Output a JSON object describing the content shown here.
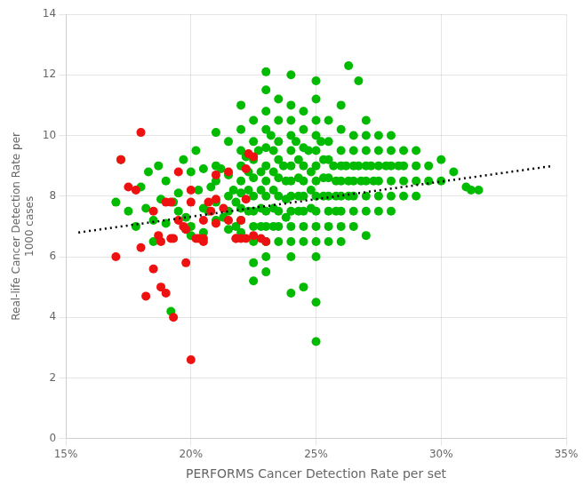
{
  "chart_data": {
    "type": "scatter",
    "xlabel": "PERFORMS Cancer Detection Rate per set",
    "ylabel": "Real-life Cancer Detection Rate per\n1000 cases",
    "xlim": [
      0.15,
      0.35
    ],
    "ylim": [
      0,
      14
    ],
    "xticks": [
      {
        "value": 0.15,
        "label": "15%"
      },
      {
        "value": 0.2,
        "label": "20%"
      },
      {
        "value": 0.25,
        "label": "25%"
      },
      {
        "value": 0.3,
        "label": "30%"
      },
      {
        "value": 0.35,
        "label": "35%"
      }
    ],
    "yticks": [
      0,
      2,
      4,
      6,
      8,
      10,
      12,
      14
    ],
    "grid": true,
    "series": [
      {
        "type": "scatter",
        "marker": "circle",
        "color": "#00BB00",
        "values": [
          [
            0.17,
            7.8
          ],
          [
            0.172,
            9.2
          ],
          [
            0.175,
            7.5
          ],
          [
            0.178,
            7.0
          ],
          [
            0.18,
            8.3
          ],
          [
            0.182,
            7.6
          ],
          [
            0.183,
            8.8
          ],
          [
            0.185,
            7.2
          ],
          [
            0.185,
            6.5
          ],
          [
            0.187,
            9.0
          ],
          [
            0.188,
            7.9
          ],
          [
            0.19,
            8.5
          ],
          [
            0.19,
            7.1
          ],
          [
            0.192,
            4.2
          ],
          [
            0.193,
            7.8
          ],
          [
            0.195,
            8.1
          ],
          [
            0.195,
            7.5
          ],
          [
            0.197,
            9.2
          ],
          [
            0.198,
            6.9
          ],
          [
            0.198,
            7.3
          ],
          [
            0.2,
            8.8
          ],
          [
            0.2,
            7.0
          ],
          [
            0.2,
            6.7
          ],
          [
            0.202,
            9.5
          ],
          [
            0.203,
            8.2
          ],
          [
            0.205,
            7.6
          ],
          [
            0.205,
            8.9
          ],
          [
            0.205,
            6.8
          ],
          [
            0.207,
            7.5
          ],
          [
            0.208,
            8.3
          ],
          [
            0.21,
            10.1
          ],
          [
            0.21,
            9.0
          ],
          [
            0.21,
            8.5
          ],
          [
            0.21,
            7.8
          ],
          [
            0.21,
            7.2
          ],
          [
            0.212,
            8.9
          ],
          [
            0.213,
            7.3
          ],
          [
            0.215,
            9.8
          ],
          [
            0.215,
            8.7
          ],
          [
            0.215,
            8.0
          ],
          [
            0.215,
            7.5
          ],
          [
            0.215,
            6.9
          ],
          [
            0.217,
            8.2
          ],
          [
            0.218,
            7.8
          ],
          [
            0.218,
            7.0
          ],
          [
            0.22,
            11.0
          ],
          [
            0.22,
            10.2
          ],
          [
            0.22,
            9.5
          ],
          [
            0.22,
            9.0
          ],
          [
            0.22,
            8.5
          ],
          [
            0.22,
            8.1
          ],
          [
            0.22,
            7.6
          ],
          [
            0.22,
            7.2
          ],
          [
            0.22,
            6.8
          ],
          [
            0.222,
            9.3
          ],
          [
            0.223,
            8.8
          ],
          [
            0.223,
            8.2
          ],
          [
            0.223,
            7.5
          ],
          [
            0.225,
            10.5
          ],
          [
            0.225,
            9.8
          ],
          [
            0.225,
            9.2
          ],
          [
            0.225,
            8.6
          ],
          [
            0.225,
            8.0
          ],
          [
            0.225,
            7.5
          ],
          [
            0.225,
            7.0
          ],
          [
            0.225,
            6.5
          ],
          [
            0.225,
            5.8
          ],
          [
            0.225,
            5.2
          ],
          [
            0.227,
            9.5
          ],
          [
            0.228,
            8.8
          ],
          [
            0.228,
            8.2
          ],
          [
            0.228,
            7.6
          ],
          [
            0.228,
            7.0
          ],
          [
            0.23,
            12.1
          ],
          [
            0.23,
            11.5
          ],
          [
            0.23,
            10.8
          ],
          [
            0.23,
            10.2
          ],
          [
            0.23,
            9.6
          ],
          [
            0.23,
            9.0
          ],
          [
            0.23,
            8.5
          ],
          [
            0.23,
            8.0
          ],
          [
            0.23,
            7.5
          ],
          [
            0.23,
            7.0
          ],
          [
            0.23,
            6.5
          ],
          [
            0.23,
            6.0
          ],
          [
            0.23,
            5.5
          ],
          [
            0.232,
            10.0
          ],
          [
            0.233,
            9.5
          ],
          [
            0.233,
            8.8
          ],
          [
            0.233,
            8.2
          ],
          [
            0.233,
            7.6
          ],
          [
            0.233,
            7.0
          ],
          [
            0.235,
            11.2
          ],
          [
            0.235,
            10.5
          ],
          [
            0.235,
            9.8
          ],
          [
            0.235,
            9.2
          ],
          [
            0.235,
            8.6
          ],
          [
            0.235,
            8.0
          ],
          [
            0.235,
            7.5
          ],
          [
            0.235,
            7.0
          ],
          [
            0.235,
            6.5
          ],
          [
            0.237,
            9.0
          ],
          [
            0.238,
            8.5
          ],
          [
            0.238,
            7.9
          ],
          [
            0.238,
            7.3
          ],
          [
            0.24,
            12.0
          ],
          [
            0.24,
            11.0
          ],
          [
            0.24,
            10.5
          ],
          [
            0.24,
            10.0
          ],
          [
            0.24,
            9.5
          ],
          [
            0.24,
            9.0
          ],
          [
            0.24,
            8.5
          ],
          [
            0.24,
            8.0
          ],
          [
            0.24,
            7.5
          ],
          [
            0.24,
            7.0
          ],
          [
            0.24,
            6.5
          ],
          [
            0.24,
            6.0
          ],
          [
            0.24,
            4.8
          ],
          [
            0.242,
            9.8
          ],
          [
            0.243,
            9.2
          ],
          [
            0.243,
            8.6
          ],
          [
            0.243,
            8.0
          ],
          [
            0.243,
            7.5
          ],
          [
            0.245,
            10.8
          ],
          [
            0.245,
            10.2
          ],
          [
            0.245,
            9.6
          ],
          [
            0.245,
            9.0
          ],
          [
            0.245,
            8.5
          ],
          [
            0.245,
            8.0
          ],
          [
            0.245,
            7.5
          ],
          [
            0.245,
            7.0
          ],
          [
            0.245,
            6.5
          ],
          [
            0.245,
            5.0
          ],
          [
            0.247,
            9.5
          ],
          [
            0.248,
            8.8
          ],
          [
            0.248,
            8.2
          ],
          [
            0.248,
            7.6
          ],
          [
            0.25,
            11.8
          ],
          [
            0.25,
            11.2
          ],
          [
            0.25,
            10.5
          ],
          [
            0.25,
            10.0
          ],
          [
            0.25,
            9.5
          ],
          [
            0.25,
            9.0
          ],
          [
            0.25,
            8.5
          ],
          [
            0.25,
            8.0
          ],
          [
            0.25,
            7.5
          ],
          [
            0.25,
            7.0
          ],
          [
            0.25,
            6.5
          ],
          [
            0.25,
            6.0
          ],
          [
            0.25,
            4.5
          ],
          [
            0.25,
            3.2
          ],
          [
            0.252,
            9.8
          ],
          [
            0.253,
            9.2
          ],
          [
            0.253,
            8.6
          ],
          [
            0.253,
            8.0
          ],
          [
            0.255,
            10.5
          ],
          [
            0.255,
            9.8
          ],
          [
            0.255,
            9.2
          ],
          [
            0.255,
            8.6
          ],
          [
            0.255,
            8.0
          ],
          [
            0.255,
            7.5
          ],
          [
            0.255,
            7.0
          ],
          [
            0.255,
            6.5
          ],
          [
            0.257,
            9.0
          ],
          [
            0.258,
            8.5
          ],
          [
            0.258,
            8.0
          ],
          [
            0.258,
            7.5
          ],
          [
            0.26,
            11.0
          ],
          [
            0.26,
            10.2
          ],
          [
            0.26,
            9.5
          ],
          [
            0.26,
            9.0
          ],
          [
            0.26,
            8.5
          ],
          [
            0.26,
            8.0
          ],
          [
            0.26,
            7.5
          ],
          [
            0.26,
            7.0
          ],
          [
            0.26,
            6.5
          ],
          [
            0.262,
            9.0
          ],
          [
            0.263,
            8.5
          ],
          [
            0.263,
            8.0
          ],
          [
            0.265,
            10.0
          ],
          [
            0.265,
            9.5
          ],
          [
            0.265,
            9.0
          ],
          [
            0.265,
            8.5
          ],
          [
            0.265,
            8.0
          ],
          [
            0.265,
            7.5
          ],
          [
            0.265,
            7.0
          ],
          [
            0.267,
            9.0
          ],
          [
            0.268,
            8.5
          ],
          [
            0.27,
            10.5
          ],
          [
            0.27,
            10.0
          ],
          [
            0.27,
            9.5
          ],
          [
            0.27,
            9.0
          ],
          [
            0.27,
            8.5
          ],
          [
            0.27,
            8.0
          ],
          [
            0.27,
            7.5
          ],
          [
            0.27,
            6.7
          ],
          [
            0.272,
            9.0
          ],
          [
            0.273,
            8.5
          ],
          [
            0.275,
            10.0
          ],
          [
            0.275,
            9.5
          ],
          [
            0.275,
            9.0
          ],
          [
            0.275,
            8.5
          ],
          [
            0.275,
            8.0
          ],
          [
            0.275,
            7.5
          ],
          [
            0.278,
            9.0
          ],
          [
            0.28,
            10.0
          ],
          [
            0.28,
            9.5
          ],
          [
            0.28,
            9.0
          ],
          [
            0.28,
            8.5
          ],
          [
            0.28,
            8.0
          ],
          [
            0.28,
            7.5
          ],
          [
            0.283,
            9.0
          ],
          [
            0.285,
            9.5
          ],
          [
            0.285,
            9.0
          ],
          [
            0.285,
            8.5
          ],
          [
            0.285,
            8.0
          ],
          [
            0.29,
            9.5
          ],
          [
            0.29,
            9.0
          ],
          [
            0.29,
            8.5
          ],
          [
            0.29,
            8.0
          ],
          [
            0.295,
            9.0
          ],
          [
            0.295,
            8.5
          ],
          [
            0.3,
            9.2
          ],
          [
            0.3,
            8.5
          ],
          [
            0.305,
            8.8
          ],
          [
            0.31,
            8.3
          ],
          [
            0.315,
            8.2
          ],
          [
            0.263,
            12.3
          ],
          [
            0.267,
            11.8
          ],
          [
            0.312,
            8.2
          ]
        ]
      },
      {
        "type": "scatter",
        "marker": "circle",
        "color": "#EE1111",
        "values": [
          [
            0.17,
            6.0
          ],
          [
            0.172,
            9.2
          ],
          [
            0.175,
            8.3
          ],
          [
            0.178,
            8.2
          ],
          [
            0.18,
            6.3
          ],
          [
            0.182,
            4.7
          ],
          [
            0.185,
            7.5
          ],
          [
            0.187,
            6.7
          ],
          [
            0.188,
            6.5
          ],
          [
            0.19,
            7.8
          ],
          [
            0.192,
            7.8
          ],
          [
            0.192,
            6.6
          ],
          [
            0.193,
            6.6
          ],
          [
            0.195,
            7.2
          ],
          [
            0.197,
            7.0
          ],
          [
            0.198,
            6.9
          ],
          [
            0.2,
            8.2
          ],
          [
            0.2,
            7.8
          ],
          [
            0.202,
            6.6
          ],
          [
            0.203,
            6.6
          ],
          [
            0.205,
            7.2
          ],
          [
            0.205,
            6.6
          ],
          [
            0.207,
            7.8
          ],
          [
            0.208,
            7.5
          ],
          [
            0.21,
            7.9
          ],
          [
            0.21,
            7.1
          ],
          [
            0.213,
            7.6
          ],
          [
            0.215,
            7.2
          ],
          [
            0.218,
            6.6
          ],
          [
            0.22,
            7.2
          ],
          [
            0.22,
            6.6
          ],
          [
            0.222,
            6.6
          ],
          [
            0.18,
            10.1
          ],
          [
            0.185,
            5.6
          ],
          [
            0.188,
            5.0
          ],
          [
            0.19,
            4.8
          ],
          [
            0.193,
            4.0
          ],
          [
            0.195,
            8.8
          ],
          [
            0.198,
            5.8
          ],
          [
            0.2,
            2.6
          ],
          [
            0.205,
            6.5
          ],
          [
            0.21,
            8.7
          ],
          [
            0.215,
            8.8
          ],
          [
            0.218,
            6.6
          ],
          [
            0.222,
            8.9
          ],
          [
            0.222,
            7.9
          ],
          [
            0.223,
            9.4
          ],
          [
            0.225,
            9.3
          ],
          [
            0.225,
            6.7
          ],
          [
            0.228,
            6.6
          ],
          [
            0.23,
            6.5
          ]
        ]
      },
      {
        "type": "line",
        "line_style": "dotted",
        "color": "black",
        "values": [
          [
            0.155,
            6.8
          ],
          [
            0.345,
            9.0
          ]
        ]
      }
    ]
  }
}
